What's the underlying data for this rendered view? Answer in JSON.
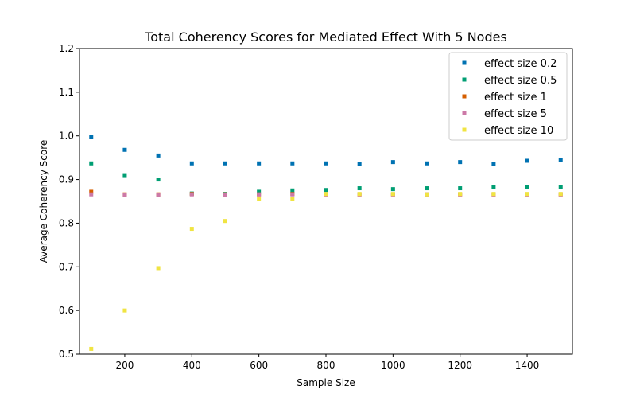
{
  "chart_data": {
    "type": "scatter",
    "title": "Total Coherency Scores for Mediated Effect With 5 Nodes",
    "xlabel": "Sample Size",
    "ylabel": "Average Coherency Score",
    "xlim": [
      65,
      1535
    ],
    "ylim": [
      0.5,
      1.2
    ],
    "xticks": [
      200,
      400,
      600,
      800,
      1000,
      1200,
      1400
    ],
    "yticks": [
      0.5,
      0.6,
      0.7,
      0.8,
      0.9,
      1.0,
      1.1,
      1.2
    ],
    "ytick_labels": [
      "0.5",
      "0.6",
      "0.7",
      "0.8",
      "0.9",
      "1.0",
      "1.1",
      "1.2"
    ],
    "grid": false,
    "legend_position": "top-right",
    "x": [
      100,
      200,
      300,
      400,
      500,
      600,
      700,
      800,
      900,
      1000,
      1100,
      1200,
      1300,
      1400,
      1500
    ],
    "series": [
      {
        "name": "effect size 0.2",
        "color": "#0072b2",
        "values": [
          0.998,
          0.968,
          0.955,
          0.937,
          0.937,
          0.937,
          0.937,
          0.937,
          0.935,
          0.94,
          0.937,
          0.94,
          0.935,
          0.943,
          0.945
        ]
      },
      {
        "name": "effect size 0.5",
        "color": "#009e73",
        "values": [
          0.937,
          0.91,
          0.9,
          0.868,
          0.867,
          0.872,
          0.875,
          0.876,
          0.88,
          0.878,
          0.88,
          0.88,
          0.882,
          0.882,
          0.882
        ]
      },
      {
        "name": "effect size 1",
        "color": "#d55e00",
        "values": [
          0.872,
          0.866,
          0.866,
          0.867,
          0.866,
          0.866,
          0.867,
          0.866,
          0.866,
          0.866,
          0.866,
          0.866,
          0.866,
          0.866,
          0.866
        ]
      },
      {
        "name": "effect size 5",
        "color": "#cc79a7",
        "values": [
          0.866,
          0.865,
          0.865,
          0.866,
          0.865,
          0.866,
          0.866,
          0.866,
          0.866,
          0.866,
          0.866,
          0.866,
          0.866,
          0.866,
          0.866
        ]
      },
      {
        "name": "effect size 10",
        "color": "#f0e442",
        "values": [
          0.512,
          0.6,
          0.697,
          0.787,
          0.805,
          0.855,
          0.856,
          0.867,
          0.867,
          0.867,
          0.866,
          0.867,
          0.867,
          0.867,
          0.867
        ]
      }
    ]
  }
}
